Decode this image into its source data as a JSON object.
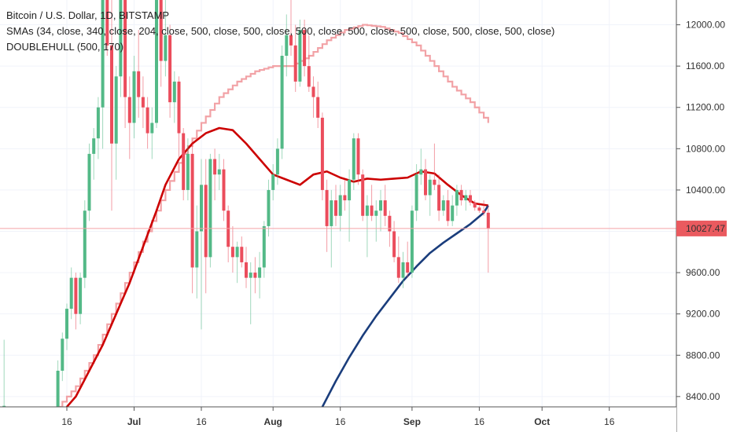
{
  "legend": {
    "symbol": "Bitcoin / U.S. Dollar, 1D, BITSTAMP",
    "smas": "SMAs (34, close, 340, close, 204, close, 500, close, 500, close, 500, close, 500, close, 500, close, 500, close, 500, close)",
    "hull": "DOUBLEHULL (500, 170)"
  },
  "price_label": "10027.47",
  "colors": {
    "up": "#53b987",
    "down": "#eb4d5c",
    "sma_long": "#f2a2a6",
    "sma_mid": "#cc0000",
    "hull": "#1a3d7c",
    "price_line": "#f5a3a8",
    "price_tag": "#ea5a5f"
  },
  "chart_data": {
    "type": "candlestick",
    "y_ticks": [
      {
        "value": 8400,
        "label": "8400.00"
      },
      {
        "value": 8800,
        "label": "8800.00"
      },
      {
        "value": 9200,
        "label": "9200.00"
      },
      {
        "value": 9600,
        "label": "9600.00"
      },
      {
        "value": 10000,
        "label": "10000.00"
      },
      {
        "value": 10400,
        "label": "10400.00"
      },
      {
        "value": 10800,
        "label": "10800.00"
      },
      {
        "value": 11200,
        "label": "11200.00"
      },
      {
        "value": 11600,
        "label": "11600.00"
      },
      {
        "value": 12000,
        "label": "12000.00"
      }
    ],
    "ylim": [
      8300,
      12240
    ],
    "x_ticks": [
      {
        "day": 0,
        "label": "16"
      },
      {
        "day": 15,
        "label": "Jul"
      },
      {
        "day": 30,
        "label": "16"
      },
      {
        "day": 46,
        "label": "Aug"
      },
      {
        "day": 61,
        "label": "16"
      },
      {
        "day": 77,
        "label": "Sep"
      },
      {
        "day": 92,
        "label": "16"
      },
      {
        "day": 106,
        "label": "Oct"
      },
      {
        "day": 121,
        "label": "16"
      }
    ],
    "last_price": 10027.47,
    "candles": [
      {
        "d": -14,
        "o": 8290,
        "h": 8950,
        "l": 8250,
        "c": 8310
      },
      {
        "d": -2,
        "o": 8200,
        "h": 8750,
        "l": 8100,
        "c": 8650
      },
      {
        "d": -1,
        "o": 8650,
        "h": 9020,
        "l": 8550,
        "c": 8960
      },
      {
        "d": 0,
        "o": 8960,
        "h": 9300,
        "l": 8850,
        "c": 9250
      },
      {
        "d": 1,
        "o": 9250,
        "h": 9650,
        "l": 9150,
        "c": 9550
      },
      {
        "d": 2,
        "o": 9550,
        "h": 9600,
        "l": 9050,
        "c": 9200
      },
      {
        "d": 3,
        "o": 9200,
        "h": 9600,
        "l": 9100,
        "c": 9550
      },
      {
        "d": 4,
        "o": 9550,
        "h": 10300,
        "l": 9450,
        "c": 10200
      },
      {
        "d": 5,
        "o": 10200,
        "h": 10850,
        "l": 10100,
        "c": 10750
      },
      {
        "d": 6,
        "o": 10750,
        "h": 11000,
        "l": 10500,
        "c": 10900
      },
      {
        "d": 7,
        "o": 10900,
        "h": 11300,
        "l": 10700,
        "c": 11200
      },
      {
        "d": 8,
        "o": 11200,
        "h": 12240,
        "l": 10800,
        "c": 12240
      },
      {
        "d": 9,
        "o": 12240,
        "h": 12240,
        "l": 11700,
        "c": 11800
      },
      {
        "d": 10,
        "o": 11800,
        "h": 12240,
        "l": 10200,
        "c": 10850
      },
      {
        "d": 11,
        "o": 10850,
        "h": 11600,
        "l": 10500,
        "c": 11500
      },
      {
        "d": 12,
        "o": 11500,
        "h": 12240,
        "l": 11300,
        "c": 12240
      },
      {
        "d": 13,
        "o": 12240,
        "h": 12240,
        "l": 11000,
        "c": 11300
      },
      {
        "d": 14,
        "o": 11300,
        "h": 11500,
        "l": 10700,
        "c": 11050
      },
      {
        "d": 15,
        "o": 11050,
        "h": 11700,
        "l": 10900,
        "c": 11550
      },
      {
        "d": 16,
        "o": 11550,
        "h": 11950,
        "l": 11100,
        "c": 11300
      },
      {
        "d": 17,
        "o": 11300,
        "h": 11500,
        "l": 11000,
        "c": 11200
      },
      {
        "d": 18,
        "o": 11200,
        "h": 11300,
        "l": 10800,
        "c": 10950
      },
      {
        "d": 19,
        "o": 10950,
        "h": 11200,
        "l": 10700,
        "c": 11050
      },
      {
        "d": 20,
        "o": 11050,
        "h": 12240,
        "l": 11000,
        "c": 12240
      },
      {
        "d": 21,
        "o": 12240,
        "h": 12240,
        "l": 11400,
        "c": 11650
      },
      {
        "d": 22,
        "o": 11650,
        "h": 12240,
        "l": 11500,
        "c": 11900
      },
      {
        "d": 23,
        "o": 11900,
        "h": 12000,
        "l": 11100,
        "c": 11250
      },
      {
        "d": 24,
        "o": 11250,
        "h": 11550,
        "l": 11050,
        "c": 11450
      },
      {
        "d": 25,
        "o": 11450,
        "h": 11500,
        "l": 10700,
        "c": 10950
      },
      {
        "d": 26,
        "o": 10950,
        "h": 11000,
        "l": 10300,
        "c": 10400
      },
      {
        "d": 27,
        "o": 10400,
        "h": 10900,
        "l": 10300,
        "c": 10750
      },
      {
        "d": 28,
        "o": 10750,
        "h": 10850,
        "l": 9400,
        "c": 9650
      },
      {
        "d": 29,
        "o": 9650,
        "h": 10250,
        "l": 9350,
        "c": 10000
      },
      {
        "d": 30,
        "o": 10000,
        "h": 10700,
        "l": 9050,
        "c": 10450
      },
      {
        "d": 31,
        "o": 10450,
        "h": 10700,
        "l": 9400,
        "c": 9750
      },
      {
        "d": 32,
        "o": 9750,
        "h": 10750,
        "l": 9650,
        "c": 10700
      },
      {
        "d": 33,
        "o": 10700,
        "h": 10800,
        "l": 10300,
        "c": 10550
      },
      {
        "d": 34,
        "o": 10550,
        "h": 10750,
        "l": 10400,
        "c": 10600
      },
      {
        "d": 35,
        "o": 10600,
        "h": 10700,
        "l": 10100,
        "c": 10200
      },
      {
        "d": 36,
        "o": 10200,
        "h": 10250,
        "l": 9700,
        "c": 9850
      },
      {
        "d": 37,
        "o": 9850,
        "h": 10050,
        "l": 9600,
        "c": 9750
      },
      {
        "d": 38,
        "o": 9750,
        "h": 9900,
        "l": 9500,
        "c": 9850
      },
      {
        "d": 39,
        "o": 9850,
        "h": 9950,
        "l": 9650,
        "c": 9700
      },
      {
        "d": 40,
        "o": 9700,
        "h": 9850,
        "l": 9450,
        "c": 9550
      },
      {
        "d": 41,
        "o": 9550,
        "h": 9700,
        "l": 9100,
        "c": 9600
      },
      {
        "d": 42,
        "o": 9600,
        "h": 9750,
        "l": 9400,
        "c": 9550
      },
      {
        "d": 43,
        "o": 9550,
        "h": 9800,
        "l": 9350,
        "c": 9650
      },
      {
        "d": 44,
        "o": 9650,
        "h": 10100,
        "l": 9550,
        "c": 10050
      },
      {
        "d": 45,
        "o": 10050,
        "h": 10500,
        "l": 9950,
        "c": 10400
      },
      {
        "d": 46,
        "o": 10400,
        "h": 10650,
        "l": 10300,
        "c": 10550
      },
      {
        "d": 47,
        "o": 10550,
        "h": 10900,
        "l": 10450,
        "c": 10800
      },
      {
        "d": 48,
        "o": 10800,
        "h": 11800,
        "l": 10700,
        "c": 11700
      },
      {
        "d": 49,
        "o": 11700,
        "h": 12100,
        "l": 11500,
        "c": 11900
      },
      {
        "d": 50,
        "o": 11900,
        "h": 12240,
        "l": 11700,
        "c": 11800
      },
      {
        "d": 51,
        "o": 11800,
        "h": 12000,
        "l": 11350,
        "c": 11450
      },
      {
        "d": 52,
        "o": 11450,
        "h": 12050,
        "l": 11400,
        "c": 11950
      },
      {
        "d": 53,
        "o": 11950,
        "h": 12050,
        "l": 11500,
        "c": 11600
      },
      {
        "d": 54,
        "o": 11600,
        "h": 11900,
        "l": 11350,
        "c": 11400
      },
      {
        "d": 55,
        "o": 11400,
        "h": 11500,
        "l": 11100,
        "c": 11300
      },
      {
        "d": 56,
        "o": 11300,
        "h": 11450,
        "l": 11000,
        "c": 11100
      },
      {
        "d": 57,
        "o": 11100,
        "h": 11150,
        "l": 10300,
        "c": 10400
      },
      {
        "d": 58,
        "o": 10400,
        "h": 10500,
        "l": 9800,
        "c": 10050
      },
      {
        "d": 59,
        "o": 10050,
        "h": 10400,
        "l": 9650,
        "c": 10300
      },
      {
        "d": 60,
        "o": 10300,
        "h": 10450,
        "l": 10050,
        "c": 10150
      },
      {
        "d": 61,
        "o": 10150,
        "h": 10450,
        "l": 10000,
        "c": 10350
      },
      {
        "d": 62,
        "o": 10350,
        "h": 10500,
        "l": 10200,
        "c": 10300
      },
      {
        "d": 63,
        "o": 10300,
        "h": 10600,
        "l": 9900,
        "c": 10500
      },
      {
        "d": 64,
        "o": 10500,
        "h": 10950,
        "l": 10400,
        "c": 10900
      },
      {
        "d": 65,
        "o": 10900,
        "h": 10950,
        "l": 10450,
        "c": 10550
      },
      {
        "d": 66,
        "o": 10550,
        "h": 10600,
        "l": 10100,
        "c": 10150
      },
      {
        "d": 67,
        "o": 10150,
        "h": 10350,
        "l": 9750,
        "c": 10250
      },
      {
        "d": 68,
        "o": 10250,
        "h": 10450,
        "l": 10100,
        "c": 10150
      },
      {
        "d": 69,
        "o": 10150,
        "h": 10300,
        "l": 9900,
        "c": 10200
      },
      {
        "d": 70,
        "o": 10200,
        "h": 10400,
        "l": 10000,
        "c": 10300
      },
      {
        "d": 71,
        "o": 10300,
        "h": 10450,
        "l": 10050,
        "c": 10150
      },
      {
        "d": 72,
        "o": 10150,
        "h": 10200,
        "l": 9850,
        "c": 10000
      },
      {
        "d": 73,
        "o": 10000,
        "h": 10100,
        "l": 9700,
        "c": 9750
      },
      {
        "d": 74,
        "o": 9750,
        "h": 9950,
        "l": 9500,
        "c": 9550
      },
      {
        "d": 75,
        "o": 9550,
        "h": 9800,
        "l": 9450,
        "c": 9700
      },
      {
        "d": 76,
        "o": 9700,
        "h": 9900,
        "l": 9550,
        "c": 9600
      },
      {
        "d": 77,
        "o": 9600,
        "h": 10250,
        "l": 9550,
        "c": 10200
      },
      {
        "d": 78,
        "o": 10200,
        "h": 10650,
        "l": 10100,
        "c": 10550
      },
      {
        "d": 79,
        "o": 10550,
        "h": 10800,
        "l": 10450,
        "c": 10600
      },
      {
        "d": 80,
        "o": 10600,
        "h": 10700,
        "l": 10300,
        "c": 10350
      },
      {
        "d": 81,
        "o": 10350,
        "h": 10550,
        "l": 10150,
        "c": 10500
      },
      {
        "d": 82,
        "o": 10500,
        "h": 10850,
        "l": 10400,
        "c": 10450
      },
      {
        "d": 83,
        "o": 10450,
        "h": 10550,
        "l": 10100,
        "c": 10200
      },
      {
        "d": 84,
        "o": 10200,
        "h": 10350,
        "l": 10150,
        "c": 10300
      },
      {
        "d": 85,
        "o": 10300,
        "h": 10400,
        "l": 10050,
        "c": 10100
      },
      {
        "d": 86,
        "o": 10100,
        "h": 10350,
        "l": 10050,
        "c": 10250
      },
      {
        "d": 87,
        "o": 10250,
        "h": 10450,
        "l": 10150,
        "c": 10400
      },
      {
        "d": 88,
        "o": 10400,
        "h": 10450,
        "l": 10250,
        "c": 10300
      },
      {
        "d": 89,
        "o": 10300,
        "h": 10400,
        "l": 10200,
        "c": 10350
      },
      {
        "d": 90,
        "o": 10350,
        "h": 10400,
        "l": 10250,
        "c": 10280
      },
      {
        "d": 91,
        "o": 10280,
        "h": 10300,
        "l": 10200,
        "c": 10230
      },
      {
        "d": 92,
        "o": 10230,
        "h": 10250,
        "l": 10180,
        "c": 10200
      },
      {
        "d": 93,
        "o": 10200,
        "h": 10300,
        "l": 10150,
        "c": 10180
      },
      {
        "d": 94,
        "o": 10180,
        "h": 10250,
        "l": 9600,
        "c": 10027
      }
    ],
    "series": [
      {
        "name": "SMA 340",
        "color_key": "sma_long",
        "style": "step",
        "points": [
          [
            -2,
            8300
          ],
          [
            2,
            8500
          ],
          [
            6,
            8800
          ],
          [
            10,
            9200
          ],
          [
            14,
            9600
          ],
          [
            18,
            10000
          ],
          [
            22,
            10400
          ],
          [
            26,
            10750
          ],
          [
            30,
            11050
          ],
          [
            34,
            11300
          ],
          [
            38,
            11450
          ],
          [
            42,
            11550
          ],
          [
            46,
            11600
          ],
          [
            50,
            11600
          ],
          [
            54,
            11700
          ],
          [
            58,
            11850
          ],
          [
            62,
            11950
          ],
          [
            66,
            12000
          ],
          [
            70,
            11980
          ],
          [
            74,
            11920
          ],
          [
            78,
            11800
          ],
          [
            82,
            11600
          ],
          [
            86,
            11400
          ],
          [
            90,
            11250
          ],
          [
            94,
            11050
          ]
        ]
      },
      {
        "name": "SMA 34",
        "color_key": "sma_mid",
        "style": "line",
        "points": [
          [
            -1,
            8250
          ],
          [
            2,
            8400
          ],
          [
            5,
            8650
          ],
          [
            8,
            8900
          ],
          [
            11,
            9200
          ],
          [
            14,
            9500
          ],
          [
            17,
            9850
          ],
          [
            20,
            10200
          ],
          [
            22,
            10450
          ],
          [
            25,
            10700
          ],
          [
            28,
            10850
          ],
          [
            31,
            10950
          ],
          [
            34,
            11000
          ],
          [
            37,
            10980
          ],
          [
            40,
            10850
          ],
          [
            43,
            10700
          ],
          [
            46,
            10550
          ],
          [
            49,
            10500
          ],
          [
            52,
            10450
          ],
          [
            55,
            10550
          ],
          [
            58,
            10580
          ],
          [
            61,
            10520
          ],
          [
            64,
            10480
          ],
          [
            67,
            10510
          ],
          [
            70,
            10500
          ],
          [
            73,
            10510
          ],
          [
            76,
            10520
          ],
          [
            79,
            10580
          ],
          [
            82,
            10560
          ],
          [
            85,
            10450
          ],
          [
            88,
            10350
          ],
          [
            91,
            10270
          ],
          [
            94,
            10250
          ]
        ]
      },
      {
        "name": "DOUBLEHULL (500, 170)",
        "color_key": "hull",
        "style": "line",
        "points": [
          [
            57,
            8300
          ],
          [
            60,
            8550
          ],
          [
            63,
            8780
          ],
          [
            66,
            8990
          ],
          [
            69,
            9180
          ],
          [
            72,
            9350
          ],
          [
            75,
            9520
          ],
          [
            78,
            9660
          ],
          [
            81,
            9790
          ],
          [
            84,
            9890
          ],
          [
            87,
            9980
          ],
          [
            90,
            10070
          ],
          [
            93,
            10180
          ],
          [
            94,
            10250
          ]
        ]
      }
    ]
  }
}
